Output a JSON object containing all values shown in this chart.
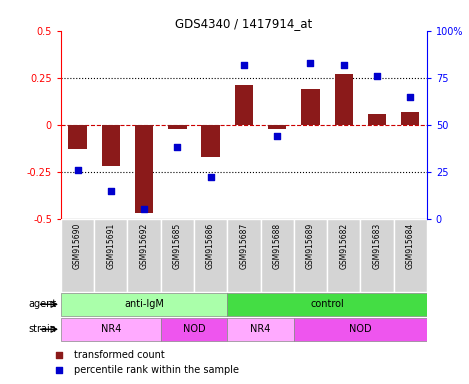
{
  "title": "GDS4340 / 1417914_at",
  "samples": [
    "GSM915690",
    "GSM915691",
    "GSM915692",
    "GSM915685",
    "GSM915686",
    "GSM915687",
    "GSM915688",
    "GSM915689",
    "GSM915682",
    "GSM915683",
    "GSM915684"
  ],
  "bar_values": [
    -0.13,
    -0.22,
    -0.47,
    -0.02,
    -0.17,
    0.21,
    -0.02,
    0.19,
    0.27,
    0.06,
    0.07
  ],
  "percentile_values": [
    26,
    15,
    5,
    38,
    22,
    82,
    44,
    83,
    82,
    76,
    65
  ],
  "bar_color": "#8B1A1A",
  "dot_color": "#0000CD",
  "ylim_left": [
    -0.5,
    0.5
  ],
  "ylim_right": [
    0,
    100
  ],
  "yticks_left": [
    -0.5,
    -0.25,
    0,
    0.25,
    0.5
  ],
  "yticks_right": [
    0,
    25,
    50,
    75,
    100
  ],
  "ytick_labels_left": [
    "-0.5",
    "-0.25",
    "0",
    "0.25",
    "0.5"
  ],
  "ytick_labels_right": [
    "0",
    "25",
    "50",
    "75",
    "100%"
  ],
  "agent_groups": [
    {
      "label": "anti-IgM",
      "start": 0,
      "end": 5,
      "color": "#AAFFAA"
    },
    {
      "label": "control",
      "start": 5,
      "end": 11,
      "color": "#44DD44"
    }
  ],
  "strain_groups": [
    {
      "label": "NR4",
      "start": 0,
      "end": 3,
      "color": "#FFAAFF"
    },
    {
      "label": "NOD",
      "start": 3,
      "end": 5,
      "color": "#EE55EE"
    },
    {
      "label": "NR4",
      "start": 5,
      "end": 7,
      "color": "#FFAAFF"
    },
    {
      "label": "NOD",
      "start": 7,
      "end": 11,
      "color": "#EE55EE"
    }
  ],
  "legend_items": [
    "transformed count",
    "percentile rank within the sample"
  ],
  "legend_colors": [
    "#8B1A1A",
    "#0000CD"
  ]
}
